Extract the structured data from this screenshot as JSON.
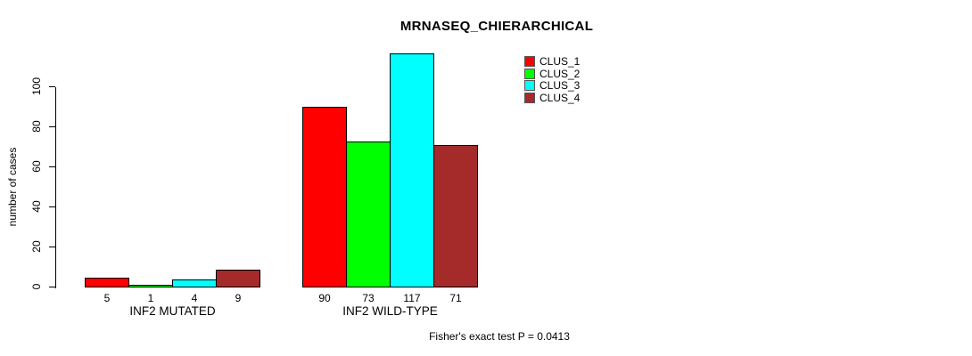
{
  "chart_data": {
    "type": "bar",
    "title": "MRNASEQ_CHIERARCHICAL",
    "ylabel": "number of cases",
    "yticks": [
      0,
      20,
      40,
      60,
      80,
      100
    ],
    "ylim": [
      0,
      117
    ],
    "grid": false,
    "legend_position": "top-right-inside",
    "categories": [
      "INF2 MUTATED",
      "INF2 WILD-TYPE"
    ],
    "series": [
      {
        "name": "CLUS_1",
        "color": "#ff0000",
        "values": [
          5,
          90
        ]
      },
      {
        "name": "CLUS_2",
        "color": "#00ff00",
        "values": [
          1,
          73
        ]
      },
      {
        "name": "CLUS_3",
        "color": "#00ffff",
        "values": [
          4,
          117
        ]
      },
      {
        "name": "CLUS_4",
        "color": "#a52a2a",
        "values": [
          9,
          71
        ]
      }
    ],
    "bar_value_labels": [
      [
        "5",
        "1",
        "4",
        "9"
      ],
      [
        "90",
        "73",
        "117",
        "71"
      ]
    ],
    "annotation": "Fisher's exact test P = 0.0413"
  }
}
